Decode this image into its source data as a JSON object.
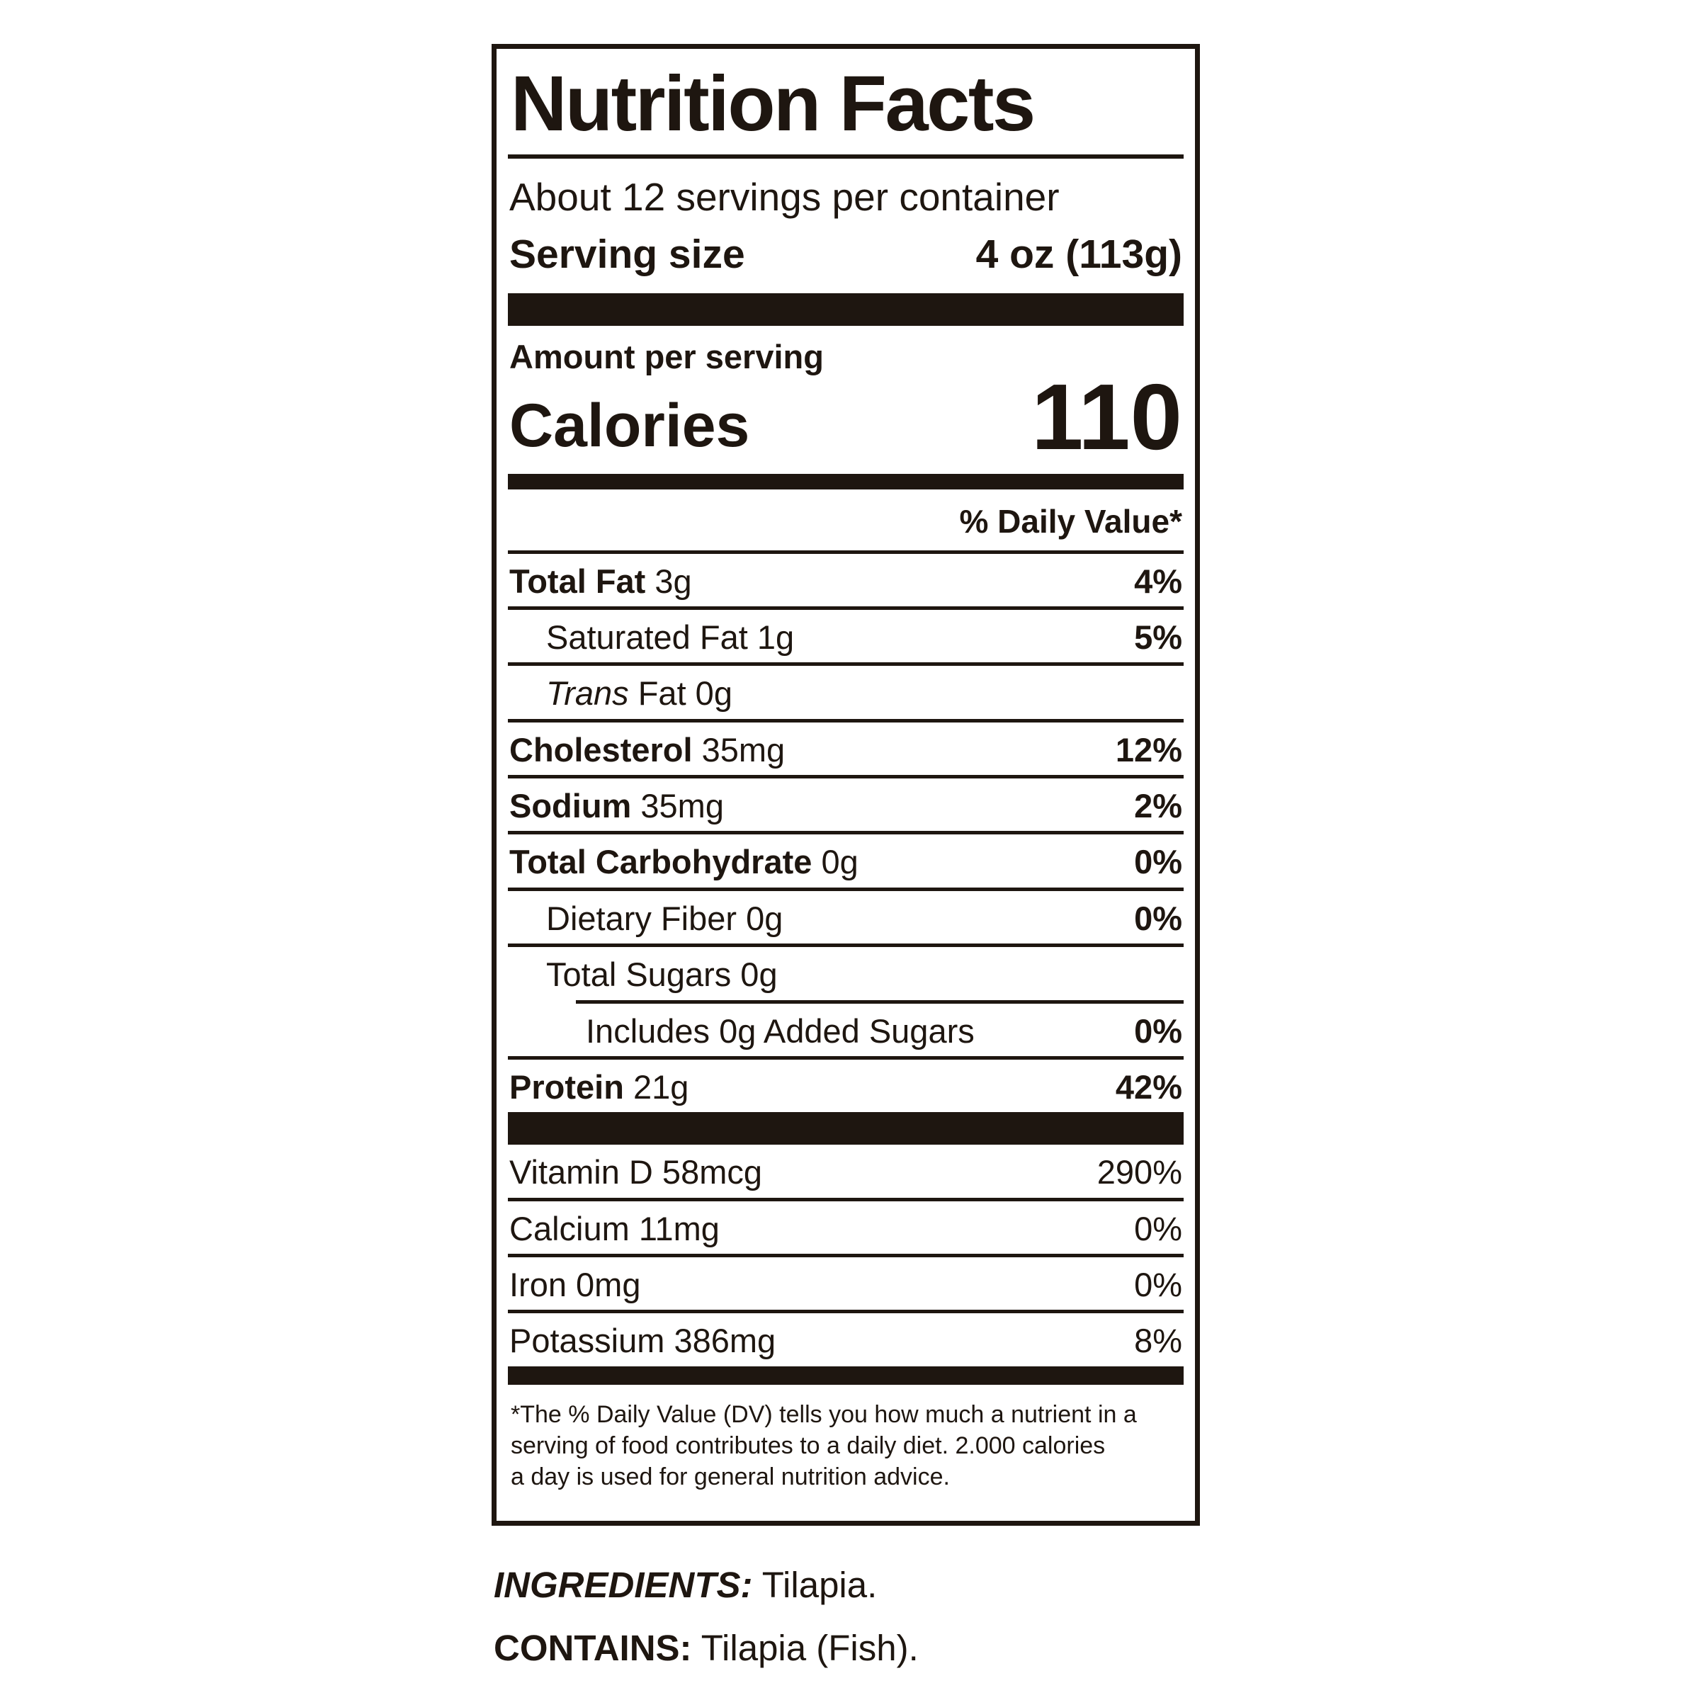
{
  "colors": {
    "ink": "#1e1610",
    "paper": "#ffffff"
  },
  "label": {
    "title": "Nutrition Facts",
    "servings_per_container": "About 12 servings per container",
    "serving_size_label": "Serving size",
    "serving_size_value": "4 oz (113g)",
    "amount_per_serving": "Amount per serving",
    "calories_label": "Calories",
    "calories_value": "110",
    "daily_value_header": "% Daily Value*",
    "nutrient_rows": [
      {
        "name": "row-total-fat",
        "rule": "none",
        "indent": 0,
        "segments": [
          {
            "t": "Total Fat ",
            "b": true
          },
          {
            "t": "3g"
          }
        ],
        "dv": {
          "t": "4%",
          "b": true
        }
      },
      {
        "name": "row-saturated-fat",
        "rule": "full",
        "indent": 1,
        "segments": [
          {
            "t": "Saturated Fat 1g"
          }
        ],
        "dv": {
          "t": "5%",
          "b": true
        }
      },
      {
        "name": "row-trans-fat",
        "rule": "full",
        "indent": 1,
        "segments": [
          {
            "t": "Trans",
            "i": true
          },
          {
            "t": " Fat 0g"
          }
        ],
        "dv": null
      },
      {
        "name": "row-cholesterol",
        "rule": "full",
        "indent": 0,
        "segments": [
          {
            "t": "Cholesterol ",
            "b": true
          },
          {
            "t": "35mg"
          }
        ],
        "dv": {
          "t": "12%",
          "b": true
        }
      },
      {
        "name": "row-sodium",
        "rule": "full",
        "indent": 0,
        "segments": [
          {
            "t": "Sodium ",
            "b": true
          },
          {
            "t": "35mg"
          }
        ],
        "dv": {
          "t": "2%",
          "b": true
        }
      },
      {
        "name": "row-total-carbohydrate",
        "rule": "full",
        "indent": 0,
        "segments": [
          {
            "t": "Total Carbohydrate ",
            "b": true
          },
          {
            "t": "0g"
          }
        ],
        "dv": {
          "t": "0%",
          "b": true
        }
      },
      {
        "name": "row-dietary-fiber",
        "rule": "full",
        "indent": 1,
        "segments": [
          {
            "t": "Dietary Fiber 0g"
          }
        ],
        "dv": {
          "t": "0%",
          "b": true
        }
      },
      {
        "name": "row-total-sugars",
        "rule": "full",
        "indent": 1,
        "segments": [
          {
            "t": "Total Sugars 0g"
          }
        ],
        "dv": null
      },
      {
        "name": "row-added-sugars",
        "rule": "inset",
        "indent": 0,
        "segments": [
          {
            "t": "Includes 0g Added Sugars"
          }
        ],
        "dv": {
          "t": "0%",
          "b": true
        }
      },
      {
        "name": "row-protein",
        "rule": "full",
        "indent": 0,
        "segments": [
          {
            "t": "Protein ",
            "b": true
          },
          {
            "t": "21g"
          }
        ],
        "dv": {
          "t": "42%",
          "b": true
        }
      }
    ],
    "micronutrient_rows": [
      {
        "name": "row-vitamin-d",
        "rule": "none",
        "indent": 0,
        "segments": [
          {
            "t": "Vitamin D 58mcg"
          }
        ],
        "dv": {
          "t": "290%",
          "b": false
        }
      },
      {
        "name": "row-calcium",
        "rule": "full",
        "indent": 0,
        "segments": [
          {
            "t": "Calcium 11mg"
          }
        ],
        "dv": {
          "t": "0%",
          "b": false
        }
      },
      {
        "name": "row-iron",
        "rule": "full",
        "indent": 0,
        "segments": [
          {
            "t": "Iron 0mg"
          }
        ],
        "dv": {
          "t": "0%",
          "b": false
        }
      },
      {
        "name": "row-potassium",
        "rule": "full",
        "indent": 0,
        "segments": [
          {
            "t": "Potassium 386mg"
          }
        ],
        "dv": {
          "t": "8%",
          "b": false
        }
      }
    ],
    "footnote_lines": {
      "line1": "*The % Daily Value (DV) tells you how much a nutrient in a",
      "line2": "serving of food contributes to a daily diet. 2.000 calories",
      "line3": "a day is used for general nutrition advice."
    }
  },
  "ingredients": {
    "label": "INGREDIENTS:",
    "value": " Tilapia."
  },
  "contains": {
    "label": "CONTAINS:",
    "value": " Tilapia (Fish)."
  }
}
